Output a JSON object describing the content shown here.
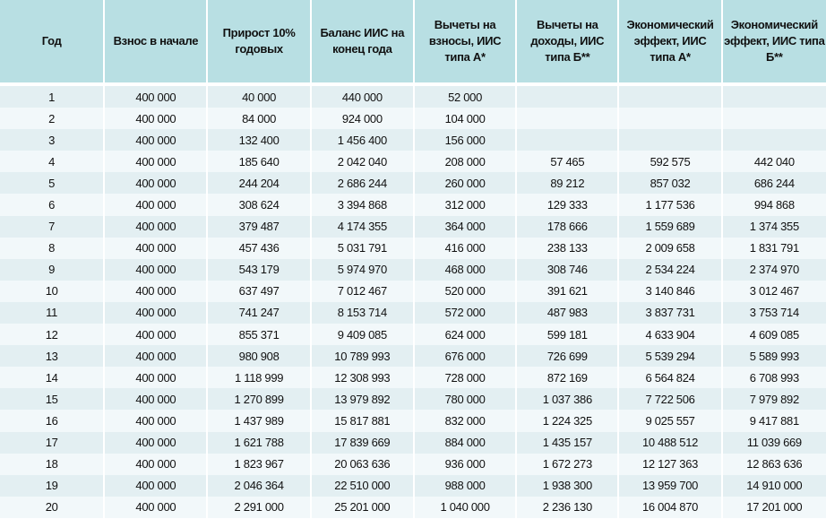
{
  "headers": [
    "Год",
    "Взнос в начале",
    "Прирост 10% годовых",
    "Баланс ИИС на конец года",
    "Вычеты на взносы, ИИС типа А*",
    "Вычеты на доходы, ИИС типа Б**",
    "Экономический эффект, ИИС типа А*",
    "Экономический эффект, ИИС типа Б**"
  ],
  "rows": [
    [
      "1",
      "400 000",
      "40 000",
      "440 000",
      "52 000",
      "",
      "",
      ""
    ],
    [
      "2",
      "400 000",
      "84 000",
      "924 000",
      "104 000",
      "",
      "",
      ""
    ],
    [
      "3",
      "400 000",
      "132 400",
      "1 456 400",
      "156 000",
      "",
      "",
      ""
    ],
    [
      "4",
      "400 000",
      "185 640",
      "2 042 040",
      "208 000",
      "57 465",
      "592 575",
      "442 040"
    ],
    [
      "5",
      "400 000",
      "244 204",
      "2 686 244",
      "260 000",
      "89 212",
      "857 032",
      "686 244"
    ],
    [
      "6",
      "400 000",
      "308 624",
      "3 394 868",
      "312 000",
      "129 333",
      "1 177 536",
      "994 868"
    ],
    [
      "7",
      "400 000",
      "379 487",
      "4 174 355",
      "364 000",
      "178 666",
      "1 559 689",
      "1 374 355"
    ],
    [
      "8",
      "400 000",
      "457 436",
      "5 031 791",
      "416 000",
      "238 133",
      "2 009 658",
      "1 831 791"
    ],
    [
      "9",
      "400 000",
      "543 179",
      "5 974 970",
      "468 000",
      "308 746",
      "2 534 224",
      "2 374 970"
    ],
    [
      "10",
      "400 000",
      "637 497",
      "7 012 467",
      "520 000",
      "391 621",
      "3 140 846",
      "3 012 467"
    ],
    [
      "11",
      "400 000",
      "741 247",
      "8 153 714",
      "572 000",
      "487 983",
      "3 837 731",
      "3 753 714"
    ],
    [
      "12",
      "400 000",
      "855 371",
      "9 409 085",
      "624 000",
      "599 181",
      "4 633 904",
      "4 609 085"
    ],
    [
      "13",
      "400 000",
      "980 908",
      "10 789 993",
      "676 000",
      "726 699",
      "5 539 294",
      "5 589 993"
    ],
    [
      "14",
      "400 000",
      "1 118 999",
      "12 308 993",
      "728 000",
      "872 169",
      "6 564 824",
      "6 708 993"
    ],
    [
      "15",
      "400 000",
      "1 270 899",
      "13 979 892",
      "780 000",
      "1 037 386",
      "7 722 506",
      "7 979 892"
    ],
    [
      "16",
      "400 000",
      "1 437 989",
      "15 817 881",
      "832 000",
      "1 224 325",
      "9 025 557",
      "9 417 881"
    ],
    [
      "17",
      "400 000",
      "1 621 788",
      "17 839 669",
      "884 000",
      "1 435 157",
      "10 488 512",
      "11 039 669"
    ],
    [
      "18",
      "400 000",
      "1 823 967",
      "20 063 636",
      "936 000",
      "1 672 273",
      "12 127 363",
      "12 863 636"
    ],
    [
      "19",
      "400 000",
      "2 046 364",
      "22 510 000",
      "988 000",
      "1 938 300",
      "13 959 700",
      "14 910 000"
    ],
    [
      "20",
      "400 000",
      "2 291 000",
      "25 201 000",
      "1 040 000",
      "2 236 130",
      "16 004 870",
      "17 201 000"
    ]
  ],
  "colors": {
    "header_bg": "#b8dfe3",
    "row_odd": "#e3eff2",
    "row_even": "#f2f8fa"
  }
}
